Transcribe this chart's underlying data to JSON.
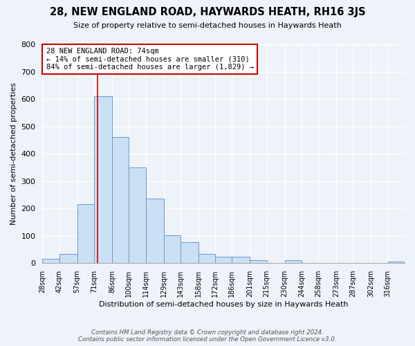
{
  "title": "28, NEW ENGLAND ROAD, HAYWARDS HEATH, RH16 3JS",
  "subtitle": "Size of property relative to semi-detached houses in Haywards Heath",
  "xlabel": "Distribution of semi-detached houses by size in Haywards Heath",
  "ylabel": "Number of semi-detached properties",
  "bin_labels": [
    "28sqm",
    "42sqm",
    "57sqm",
    "71sqm",
    "86sqm",
    "100sqm",
    "114sqm",
    "129sqm",
    "143sqm",
    "158sqm",
    "172sqm",
    "186sqm",
    "201sqm",
    "215sqm",
    "230sqm",
    "244sqm",
    "258sqm",
    "273sqm",
    "287sqm",
    "302sqm",
    "316sqm"
  ],
  "bin_edges": [
    28,
    42,
    57,
    71,
    86,
    100,
    114,
    129,
    143,
    158,
    172,
    186,
    201,
    215,
    230,
    244,
    258,
    273,
    287,
    302,
    316
  ],
  "bar_heights": [
    15,
    35,
    215,
    610,
    460,
    350,
    235,
    102,
    76,
    35,
    24,
    24,
    12,
    0,
    10,
    0,
    0,
    2,
    0,
    0,
    5
  ],
  "bar_color": "#cce0f5",
  "bar_edge_color": "#6699cc",
  "property_value": 74,
  "property_line_color": "#cc0000",
  "annotation_line1": "28 NEW ENGLAND ROAD: 74sqm",
  "annotation_line2": "← 14% of semi-detached houses are smaller (310)",
  "annotation_line3": "84% of semi-detached houses are larger (1,829) →",
  "annotation_box_color": "#ffffff",
  "annotation_box_edge": "#cc0000",
  "ylim": [
    0,
    800
  ],
  "yticks": [
    0,
    100,
    200,
    300,
    400,
    500,
    600,
    700,
    800
  ],
  "footer_line1": "Contains HM Land Registry data © Crown copyright and database right 2024.",
  "footer_line2": "Contains public sector information licensed under the Open Government Licence v3.0.",
  "background_color": "#eef2f9"
}
